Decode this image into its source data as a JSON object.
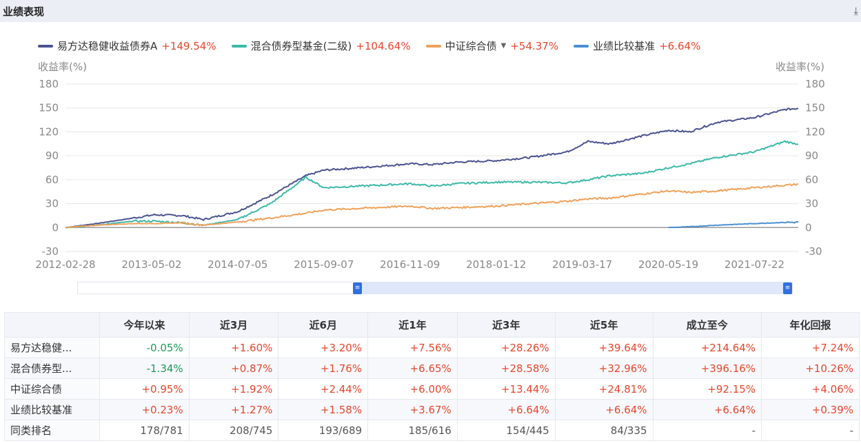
{
  "header": {
    "title": "业绩表现",
    "download_icon": "download-icon"
  },
  "legend": [
    {
      "name": "易方达稳健收益债券A",
      "value": "+149.54%",
      "color": "#4a5290"
    },
    {
      "name": "混合债券型基金(二级)",
      "value": "+104.64%",
      "color": "#3cb9a8"
    },
    {
      "name": "中证综合债",
      "value": "+54.37%",
      "color": "#f0a15a",
      "has_dropdown": true
    },
    {
      "name": "业绩比较基准",
      "value": "+6.64%",
      "color": "#4a8fd0"
    }
  ],
  "chart_data": {
    "type": "line",
    "ylabel_left": "收益率(%)",
    "ylabel_right": "收益率(%)",
    "ylim": [
      -30,
      180
    ],
    "yticks": [
      "180",
      "150",
      "120",
      "90",
      "60",
      "30",
      "0",
      "-30"
    ],
    "xlim": [
      "2012-02-28",
      "2022-02-25"
    ],
    "xticks": [
      "2012-02-28",
      "2013-05-02",
      "2014-07-05",
      "2015-09-07",
      "2016-11-09",
      "2018-01-12",
      "2019-03-17",
      "2020-05-19",
      "2021-07-22"
    ],
    "grid": true,
    "series": [
      {
        "name": "易方达稳健收益债券A",
        "color": "#4a5290",
        "points": [
          [
            "2012-02-28",
            0
          ],
          [
            "2012-08-01",
            5
          ],
          [
            "2013-02-01",
            12
          ],
          [
            "2013-05-15",
            16
          ],
          [
            "2013-10-01",
            15
          ],
          [
            "2014-01-15",
            10
          ],
          [
            "2014-07-05",
            20
          ],
          [
            "2014-12-15",
            40
          ],
          [
            "2015-06-10",
            65
          ],
          [
            "2015-09-07",
            72
          ],
          [
            "2016-03-01",
            75
          ],
          [
            "2016-11-09",
            80
          ],
          [
            "2017-03-01",
            79
          ],
          [
            "2017-07-01",
            82
          ],
          [
            "2018-01-12",
            84
          ],
          [
            "2018-07-01",
            88
          ],
          [
            "2019-01-01",
            95
          ],
          [
            "2019-04-15",
            108
          ],
          [
            "2019-08-01",
            105
          ],
          [
            "2020-01-10",
            115
          ],
          [
            "2020-05-19",
            122
          ],
          [
            "2020-09-01",
            120
          ],
          [
            "2021-01-15",
            132
          ],
          [
            "2021-07-22",
            138
          ],
          [
            "2021-12-20",
            148
          ],
          [
            "2022-02-25",
            149.54
          ]
        ]
      },
      {
        "name": "混合债券型基金(二级)",
        "color": "#3cb9a8",
        "points": [
          [
            "2012-02-28",
            0
          ],
          [
            "2012-08-01",
            3
          ],
          [
            "2013-02-01",
            8
          ],
          [
            "2013-05-15",
            8
          ],
          [
            "2013-10-01",
            6
          ],
          [
            "2014-01-15",
            3
          ],
          [
            "2014-07-05",
            10
          ],
          [
            "2014-12-15",
            30
          ],
          [
            "2015-06-10",
            63
          ],
          [
            "2015-09-07",
            50
          ],
          [
            "2016-03-01",
            52
          ],
          [
            "2016-11-09",
            55
          ],
          [
            "2017-03-01",
            52
          ],
          [
            "2017-07-01",
            55
          ],
          [
            "2018-01-12",
            57
          ],
          [
            "2018-07-01",
            57
          ],
          [
            "2019-01-01",
            56
          ],
          [
            "2019-04-15",
            60
          ],
          [
            "2019-08-01",
            65
          ],
          [
            "2020-01-10",
            68
          ],
          [
            "2020-05-19",
            75
          ],
          [
            "2020-09-01",
            80
          ],
          [
            "2021-01-15",
            88
          ],
          [
            "2021-07-22",
            95
          ],
          [
            "2021-12-20",
            108
          ],
          [
            "2022-02-25",
            104.64
          ]
        ]
      },
      {
        "name": "中证综合债",
        "color": "#f0a15a",
        "points": [
          [
            "2012-02-28",
            0
          ],
          [
            "2012-08-01",
            3
          ],
          [
            "2013-02-01",
            5
          ],
          [
            "2013-05-15",
            5
          ],
          [
            "2013-10-01",
            6
          ],
          [
            "2014-01-15",
            3
          ],
          [
            "2014-07-05",
            7
          ],
          [
            "2014-12-15",
            12
          ],
          [
            "2015-06-10",
            18
          ],
          [
            "2015-09-07",
            22
          ],
          [
            "2016-03-01",
            24
          ],
          [
            "2016-11-09",
            27
          ],
          [
            "2017-03-01",
            24
          ],
          [
            "2017-07-01",
            25
          ],
          [
            "2018-01-12",
            27
          ],
          [
            "2018-07-01",
            30
          ],
          [
            "2019-01-01",
            33
          ],
          [
            "2019-04-15",
            36
          ],
          [
            "2019-08-01",
            37
          ],
          [
            "2020-01-10",
            42
          ],
          [
            "2020-05-19",
            46
          ],
          [
            "2020-09-01",
            44
          ],
          [
            "2021-01-15",
            46
          ],
          [
            "2021-07-22",
            50
          ],
          [
            "2021-12-20",
            53
          ],
          [
            "2022-02-25",
            54.37
          ]
        ]
      },
      {
        "name": "业绩比较基准",
        "color": "#4a8fd0",
        "points": [
          [
            "2020-05-19",
            0
          ],
          [
            "2020-09-01",
            1
          ],
          [
            "2021-01-15",
            3
          ],
          [
            "2021-07-22",
            5
          ],
          [
            "2021-12-20",
            6.5
          ],
          [
            "2022-02-25",
            6.64
          ]
        ]
      }
    ]
  },
  "slider": {
    "range_start_fraction": 0.39,
    "range_end_fraction": 1.0
  },
  "table": {
    "headers": [
      "",
      "今年以来",
      "近3月",
      "近6月",
      "近1年",
      "近3年",
      "近5年",
      "成立至今",
      "年化回报"
    ],
    "rows": [
      {
        "name": "易方达稳健...",
        "values": [
          "-0.05%",
          "+1.60%",
          "+3.20%",
          "+7.56%",
          "+28.26%",
          "+39.64%",
          "+214.64%",
          "+7.24%"
        ]
      },
      {
        "name": "混合债券型...",
        "values": [
          "-1.34%",
          "+0.87%",
          "+1.76%",
          "+6.65%",
          "+28.58%",
          "+32.96%",
          "+396.16%",
          "+10.26%"
        ]
      },
      {
        "name": "中证综合债",
        "values": [
          "+0.95%",
          "+1.92%",
          "+2.44%",
          "+6.00%",
          "+13.44%",
          "+24.81%",
          "+92.15%",
          "+4.06%"
        ]
      },
      {
        "name": "业绩比较基准",
        "values": [
          "+0.23%",
          "+1.27%",
          "+1.58%",
          "+3.67%",
          "+6.64%",
          "+6.64%",
          "+6.64%",
          "+0.39%"
        ]
      },
      {
        "name": "同类排名",
        "values": [
          "178/781",
          "208/745",
          "193/689",
          "185/616",
          "154/445",
          "84/335",
          "-",
          "-"
        ]
      }
    ]
  }
}
